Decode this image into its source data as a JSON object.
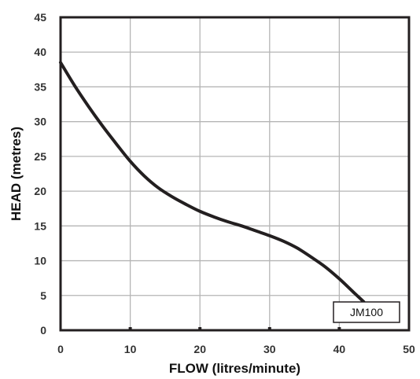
{
  "chart_data": {
    "type": "line",
    "xlabel": "FLOW (litres/minute)",
    "ylabel": "HEAD (metres)",
    "xlim": [
      0,
      50
    ],
    "ylim": [
      0,
      45
    ],
    "x_ticks": [
      0,
      10,
      20,
      30,
      40,
      50
    ],
    "y_ticks": [
      0,
      5,
      10,
      15,
      20,
      25,
      30,
      35,
      40,
      45
    ],
    "grid": true,
    "legend_placement": "bottom-right",
    "series": [
      {
        "name": "JM100",
        "color": "#231f20",
        "x": [
          0,
          2,
          4,
          6,
          8,
          10,
          12,
          14,
          16,
          18,
          20,
          22,
          24,
          26,
          28,
          30,
          32,
          34,
          36,
          38,
          40,
          42,
          43.5
        ],
        "y": [
          38.5,
          35.2,
          32.2,
          29.4,
          26.8,
          24.3,
          22.2,
          20.5,
          19.2,
          18.1,
          17.1,
          16.3,
          15.6,
          15.0,
          14.3,
          13.6,
          12.8,
          11.8,
          10.5,
          9.1,
          7.4,
          5.5,
          4.1
        ]
      }
    ]
  }
}
